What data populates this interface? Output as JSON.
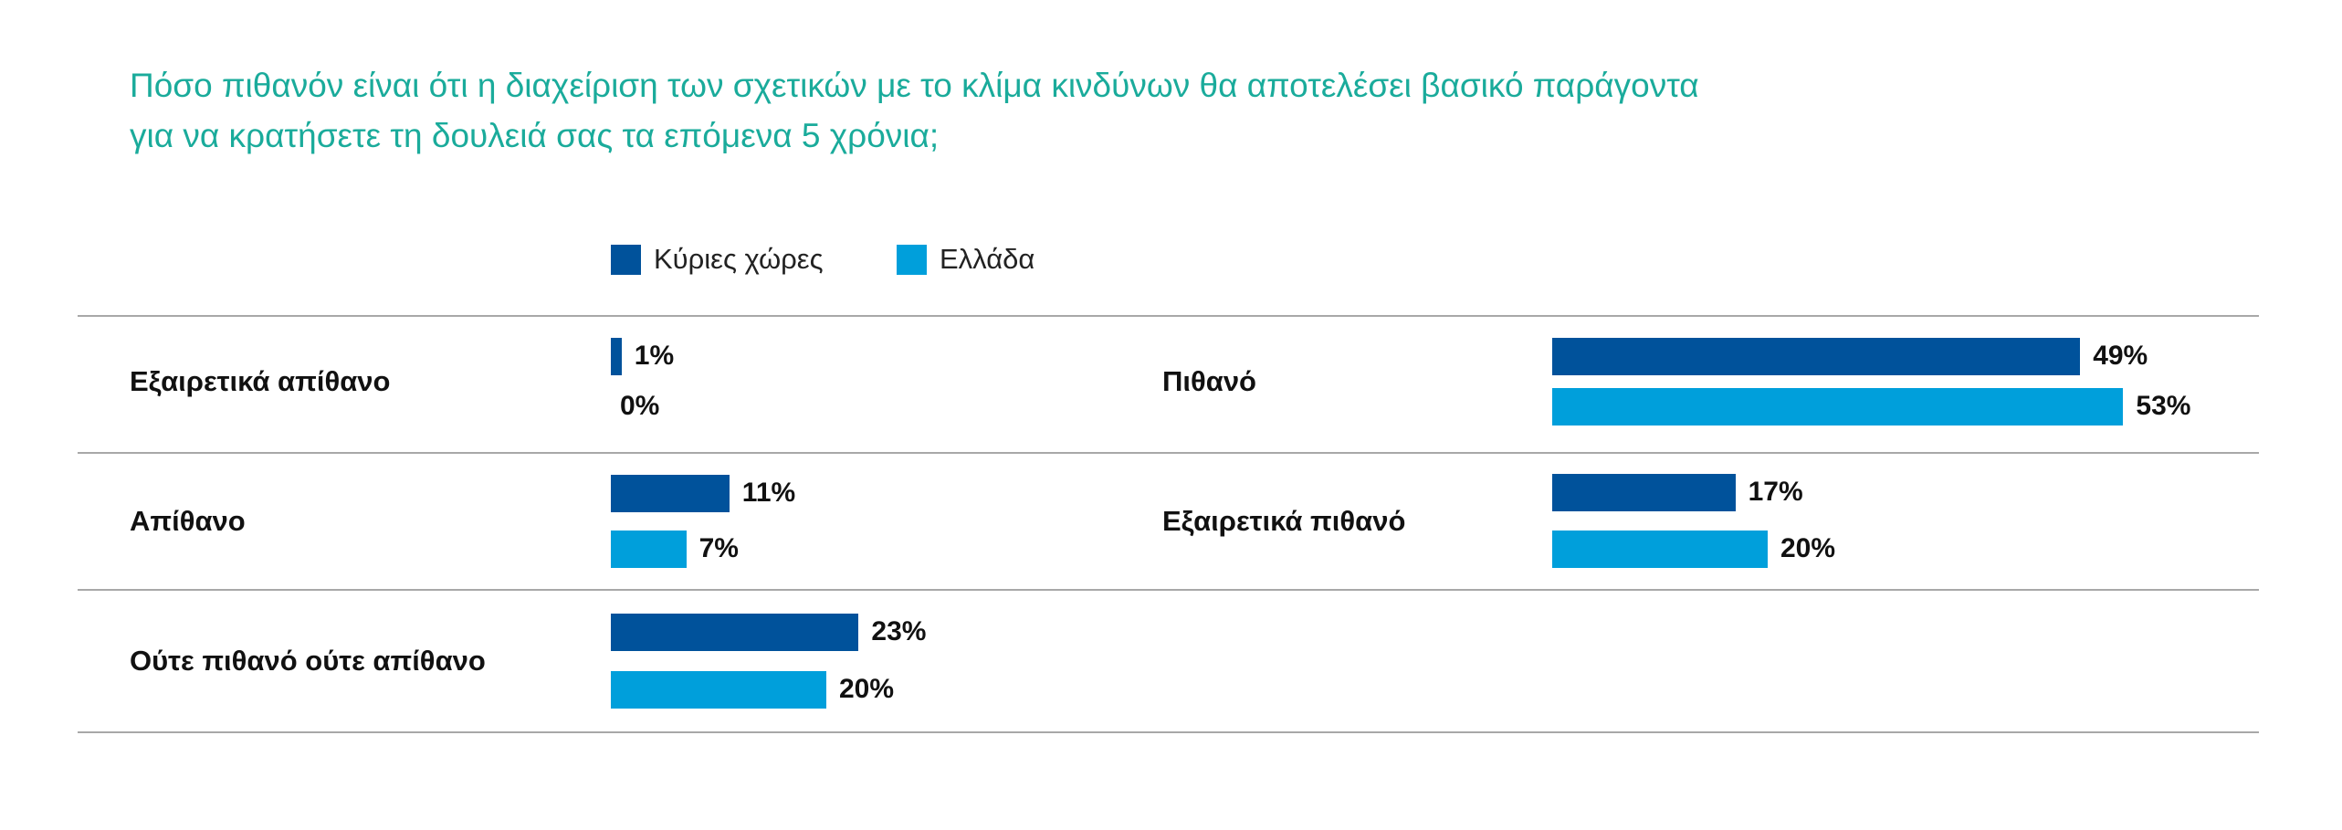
{
  "chart_data": {
    "type": "bar",
    "orientation": "horizontal",
    "title": "Πόσο πιθανόν είναι ότι η διαχείριση των σχετικών με το κλίμα κινδύνων θα αποτελέσει βασικό παράγοντα για να κρατήσετε τη δουλειά σας τα επόμενα 5 χρόνια;",
    "title_lines": [
      "Πόσο πιθανόν είναι ότι η διαχείριση των σχετικών με το κλίμα κινδύνων θα αποτελέσει βασικό παράγοντα",
      "για να κρατήσετε τη δουλειά σας τα επόμενα 5 χρόνια;"
    ],
    "legend_position": "top-left",
    "series": [
      {
        "name": "Κύριες χώρες",
        "color": "#00529b",
        "values": [
          1,
          11,
          23,
          49,
          17
        ]
      },
      {
        "name": "Ελλάδα",
        "color": "#009fdb",
        "values": [
          0,
          7,
          20,
          53,
          20
        ]
      }
    ],
    "categories": [
      "Εξαιρετικά απίθανο",
      "Απίθανο",
      "Ούτε πιθανό ούτε απίθανο",
      "Πιθανό",
      "Εξαιρετικά πιθανό"
    ],
    "value_labels": [
      [
        "1%",
        "11%",
        "23%",
        "49%",
        "17%"
      ],
      [
        "0%",
        "7%",
        "20%",
        "53%",
        "20%"
      ]
    ],
    "unit": "%"
  }
}
